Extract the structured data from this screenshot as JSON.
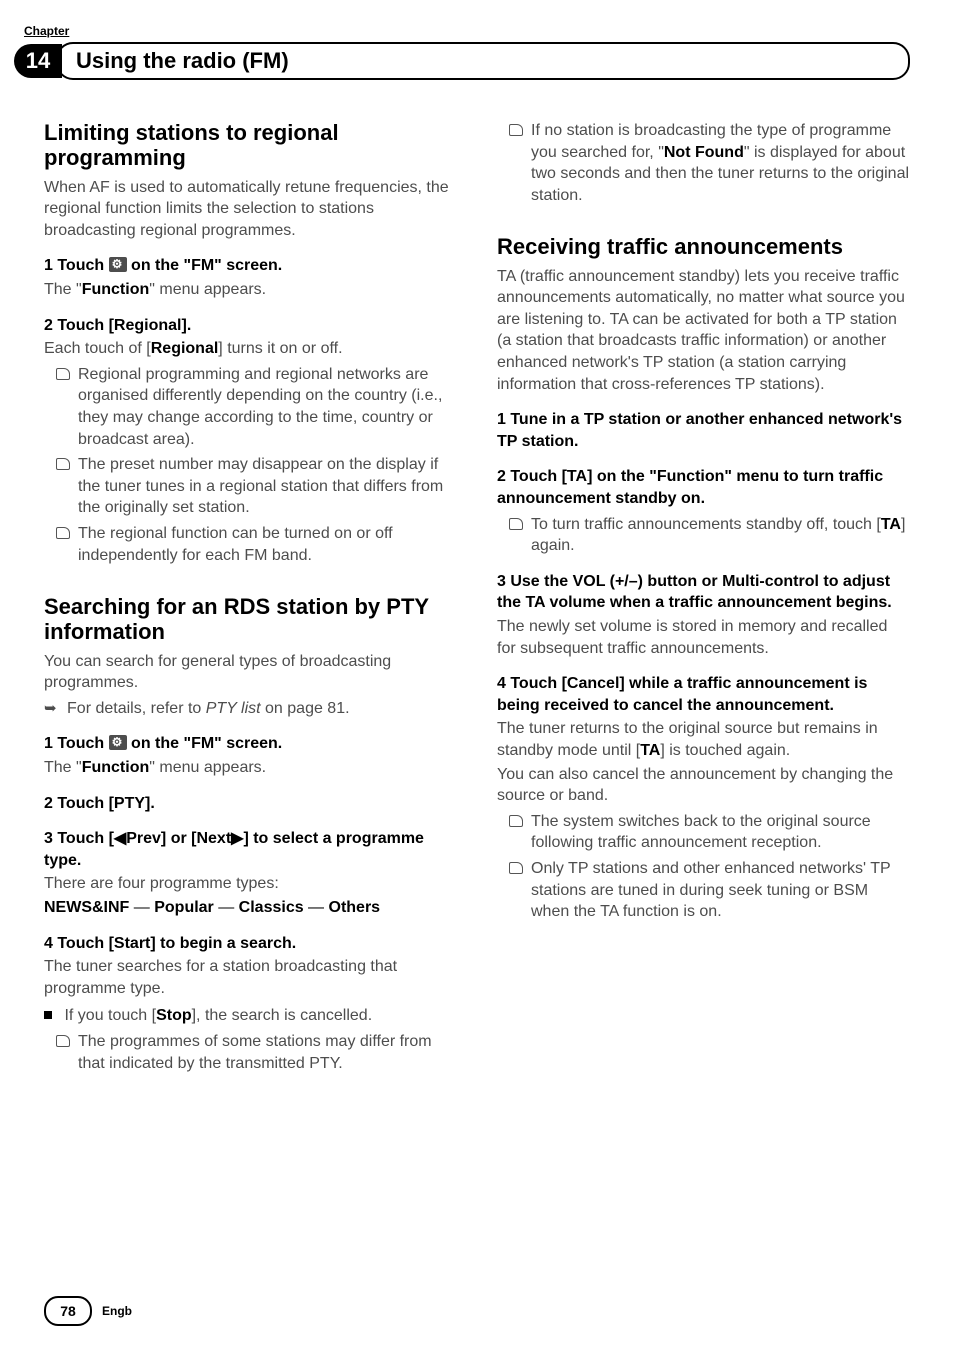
{
  "header": {
    "chapter_label": "Chapter",
    "chapter_num": "14",
    "title": "Using the radio (FM)"
  },
  "left": {
    "sec1": {
      "heading": "Limiting stations to regional programming",
      "intro": "When AF is used to automatically retune frequencies, the regional function limits the selection to stations broadcasting regional programmes.",
      "step1_pre": "1    Touch ",
      "step1_post": " on the \"FM\" screen.",
      "step1_sub_pre": "The \"",
      "step1_sub_bold": "Function",
      "step1_sub_post": "\" menu appears.",
      "step2": "2    Touch [Regional].",
      "step2_sub_pre": "Each touch of [",
      "step2_sub_bold": "Regional",
      "step2_sub_post": "] turns it on or off.",
      "b1": "Regional programming and regional networks are organised differently depending on the country (i.e., they may change according to the time, country or broadcast area).",
      "b2": "The preset number may disappear on the display if the tuner tunes in a regional station that differs from the originally set station.",
      "b3": "The regional function can be turned on or off independently for each FM band."
    },
    "sec2": {
      "heading": "Searching for an RDS station by PTY information",
      "intro": "You can search for general types of broadcasting programmes.",
      "arrow_pre": "For details, refer to ",
      "arrow_italic": "PTY list",
      "arrow_post": " on page 81.",
      "step1_pre": "1    Touch ",
      "step1_post": " on the \"FM\" screen.",
      "step1_sub_pre": "The \"",
      "step1_sub_bold": "Function",
      "step1_sub_post": "\" menu appears.",
      "step2": "2    Touch [PTY].",
      "step3": "3    Touch [◀Prev] or [Next▶] to select a programme type.",
      "step3_sub": "There are four programme types:",
      "types": {
        "a": "NEWS&INF",
        "b": "Popular",
        "c": "Classics",
        "d": "Others"
      },
      "step4": "4    Touch [Start] to begin a search.",
      "step4_sub": "The tuner searches for a station broadcasting that programme type.",
      "sq_pre": "If you touch [",
      "sq_bold": "Stop",
      "sq_post": "], the search is cancelled.",
      "b1": "The programmes of some stations may differ from that indicated by the transmitted PTY."
    }
  },
  "right": {
    "top_b_pre": "If no station is broadcasting the type of programme you searched for, \"",
    "top_b_bold": "Not Found",
    "top_b_post": "\" is displayed for about two seconds and then the tuner returns to the original station.",
    "sec": {
      "heading": "Receiving traffic announcements",
      "intro": "TA (traffic announcement standby) lets you receive traffic announcements automatically, no matter what source you are listening to. TA can be activated for both a TP station (a station that broadcasts traffic information) or another enhanced network's TP station (a station carrying information that cross-references TP stations).",
      "step1": "1    Tune in a TP station or another enhanced network's TP station.",
      "step2": "2    Touch [TA] on the \"Function\" menu to turn traffic announcement standby on.",
      "s2_b_pre": "To turn traffic announcements standby off, touch [",
      "s2_b_bold": "TA",
      "s2_b_post": "] again.",
      "step3": "3    Use the VOL (+/–) button or Multi-control to adjust the TA volume when a traffic announcement begins.",
      "step3_sub": "The newly set volume is stored in memory and recalled for subsequent traffic announcements.",
      "step4": "4    Touch [Cancel] while a traffic announcement is being received to cancel the announcement.",
      "step4_sub_pre": "The tuner returns to the original source but remains in standby mode until [",
      "step4_sub_bold": "TA",
      "step4_sub_post": "] is touched again.",
      "step4_sub2": "You can also cancel the announcement by changing the source or band.",
      "b1": "The system switches back to the original source following traffic announcement reception.",
      "b2": "Only TP stations and other enhanced networks' TP stations are tuned in during seek tuning or BSM when the TA function is on."
    }
  },
  "footer": {
    "page": "78",
    "lang": "Engb"
  }
}
